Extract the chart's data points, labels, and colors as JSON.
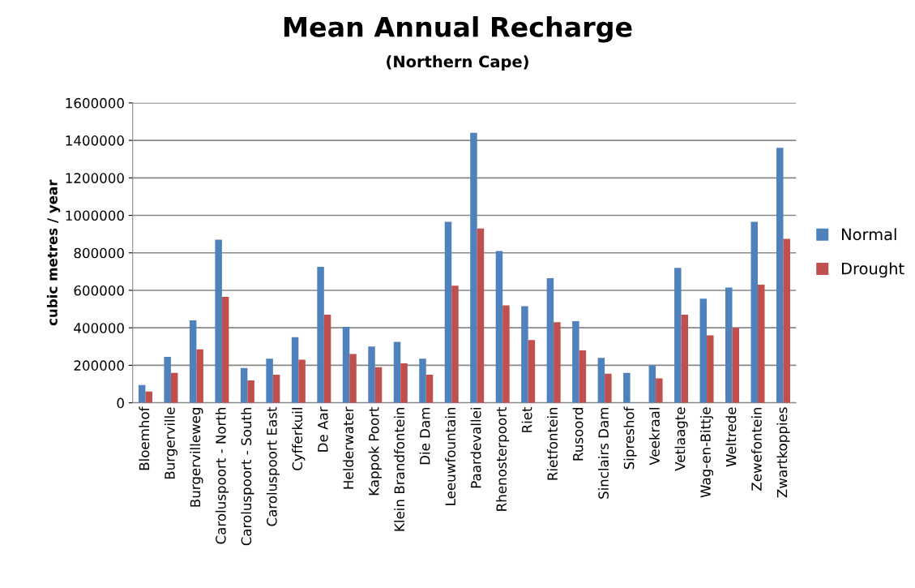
{
  "chart_data": {
    "type": "bar",
    "title": "Mean Annual Recharge",
    "subtitle": "(Northern Cape)",
    "ylabel": "cubic metres / year",
    "categories": [
      "Bloemhof",
      "Burgerville",
      "Burgervilleweg",
      "Caroluspoort - North",
      "Caroluspoort - South",
      "Caroluspoort East",
      "Cyfferkuil",
      "De Aar",
      "Helderwater",
      "Kappok Poort",
      "Klein Brandfontein",
      "Die Dam",
      "Leeuwfountain",
      "Paardevallei",
      "Rhenosterpoort",
      "Riet",
      "Rietfontein",
      "Rusoord",
      "Sinclairs Dam",
      "Sipreshof",
      "Veekraal",
      "Vetlaagte",
      "Wag-en-Bittje",
      "Weltrede",
      "Zewefontein",
      "Zwartkoppies"
    ],
    "series": [
      {
        "name": "Normal",
        "color": "#4f81bd",
        "values": [
          95000,
          245000,
          440000,
          870000,
          185000,
          235000,
          350000,
          725000,
          405000,
          300000,
          325000,
          235000,
          965000,
          1440000,
          810000,
          515000,
          665000,
          435000,
          240000,
          160000,
          200000,
          720000,
          555000,
          615000,
          965000,
          1360000
        ]
      },
      {
        "name": "Drought",
        "color": "#c0504d",
        "values": [
          60000,
          160000,
          285000,
          565000,
          120000,
          150000,
          230000,
          470000,
          260000,
          190000,
          210000,
          150000,
          625000,
          930000,
          520000,
          335000,
          430000,
          280000,
          155000,
          null,
          130000,
          470000,
          360000,
          400000,
          630000,
          875000
        ]
      }
    ],
    "ylim": [
      0,
      1600000
    ],
    "yticks": [
      0,
      200000,
      400000,
      600000,
      800000,
      1000000,
      1200000,
      1400000,
      1600000
    ],
    "grid": "y",
    "legend": "right"
  }
}
